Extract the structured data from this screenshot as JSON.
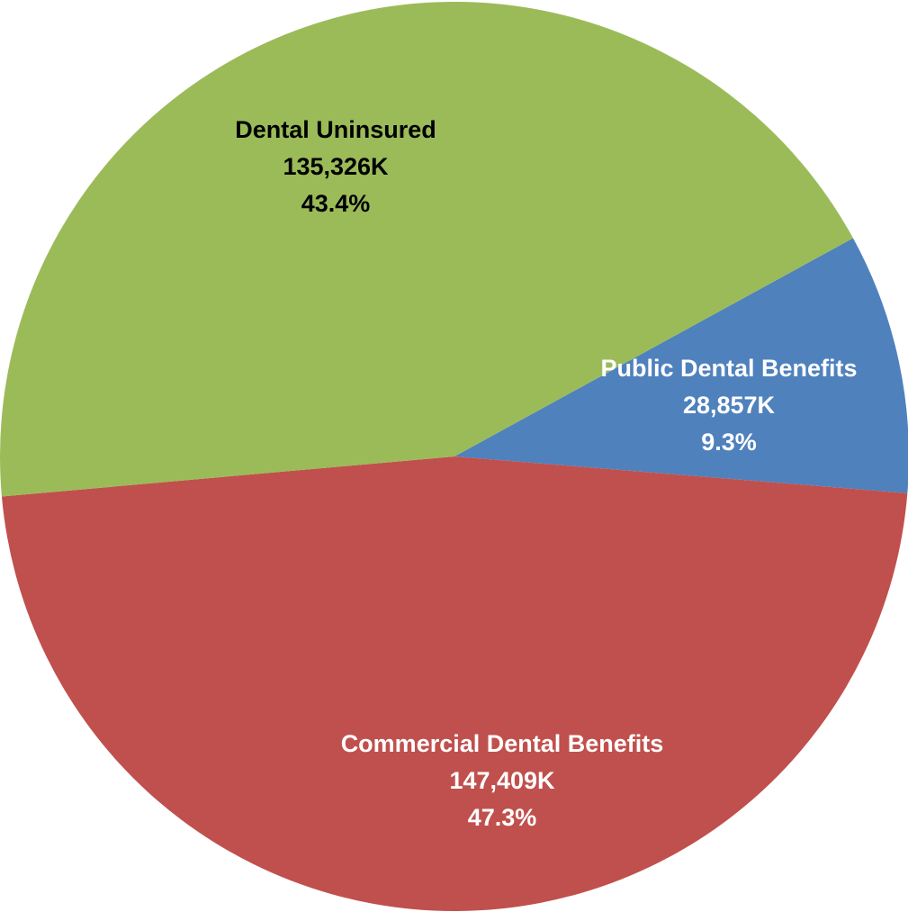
{
  "chart_data": {
    "type": "pie",
    "title": "",
    "slices": [
      {
        "label": "Public Dental Benefits",
        "value_text": "28,857K",
        "value": 28857,
        "percent_text": "9.3%",
        "percent": 9.3,
        "color": "#4f81bd",
        "label_color": "#ffffff"
      },
      {
        "label": "Commercial Dental Benefits",
        "value_text": "147,409K",
        "value": 147409,
        "percent_text": "47.3%",
        "percent": 47.3,
        "color": "#c0504d",
        "label_color": "#ffffff"
      },
      {
        "label": "Dental Uninsured",
        "value_text": "135,326K",
        "value": 135326,
        "percent_text": "43.4%",
        "percent": 43.4,
        "color": "#9bbb59",
        "label_color": "#000000"
      }
    ],
    "legend": "none"
  }
}
